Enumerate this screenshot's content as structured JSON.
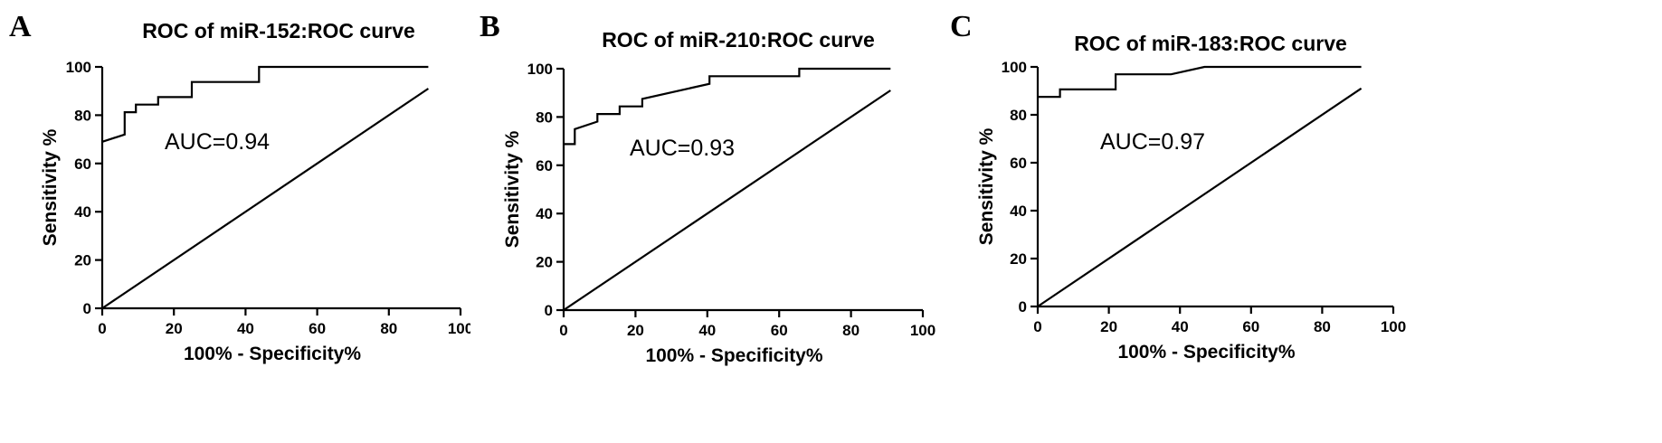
{
  "chart_data": [
    {
      "type": "line",
      "panel": "A",
      "title": "ROC of miR-152:ROC curve",
      "xlabel": "100% - Specificity%",
      "ylabel": "Sensitivity %",
      "xlim": [
        0,
        100
      ],
      "ylim": [
        0,
        100
      ],
      "xticks": [
        0,
        20,
        40,
        60,
        80,
        100
      ],
      "yticks": [
        0,
        20,
        40,
        60,
        80,
        100
      ],
      "grid": false,
      "annotation": "AUC=0.94",
      "series": [
        {
          "x": [
            0,
            6.25,
            6.25,
            9.4,
            9.4,
            15.6,
            15.6,
            25,
            25,
            43.75,
            43.75,
            91
          ],
          "y": [
            69,
            72,
            81.25,
            81.25,
            84.4,
            84.4,
            87.5,
            87.5,
            93.75,
            93.75,
            100,
            100
          ]
        },
        {
          "x": [
            0,
            91
          ],
          "y": [
            0,
            91
          ]
        }
      ]
    },
    {
      "type": "line",
      "panel": "B",
      "title": "ROC of miR-210:ROC curve",
      "xlabel": "100% - Specificity%",
      "ylabel": "Sensitivity %",
      "xlim": [
        0,
        100
      ],
      "ylim": [
        0,
        100
      ],
      "xticks": [
        0,
        20,
        40,
        60,
        80,
        100
      ],
      "yticks": [
        0,
        20,
        40,
        60,
        80,
        100
      ],
      "grid": false,
      "annotation": "AUC=0.93",
      "series": [
        {
          "x": [
            0,
            3.1,
            3.1,
            9.4,
            9.4,
            15.6,
            15.6,
            21.9,
            21.9,
            40.6,
            40.6,
            65.6,
            65.6,
            91
          ],
          "y": [
            68.75,
            68.75,
            75,
            78.1,
            81.25,
            81.25,
            84.4,
            84.4,
            87.5,
            93.75,
            96.9,
            96.9,
            100,
            100
          ]
        },
        {
          "x": [
            0,
            91
          ],
          "y": [
            0,
            91
          ]
        }
      ]
    },
    {
      "type": "line",
      "panel": "C",
      "title": "ROC of miR-183:ROC curve",
      "xlabel": "100% - Specificity%",
      "ylabel": "Sensitivity %",
      "xlim": [
        0,
        100
      ],
      "ylim": [
        0,
        100
      ],
      "xticks": [
        0,
        20,
        40,
        60,
        80,
        100
      ],
      "yticks": [
        0,
        20,
        40,
        60,
        80,
        100
      ],
      "grid": false,
      "annotation": "AUC=0.97",
      "series": [
        {
          "x": [
            0,
            6.25,
            6.25,
            21.9,
            21.9,
            37.5,
            46.9,
            91
          ],
          "y": [
            87.5,
            87.5,
            90.6,
            90.6,
            96.9,
            96.9,
            100,
            100
          ]
        },
        {
          "x": [
            0,
            91
          ],
          "y": [
            0,
            91
          ]
        }
      ]
    }
  ]
}
